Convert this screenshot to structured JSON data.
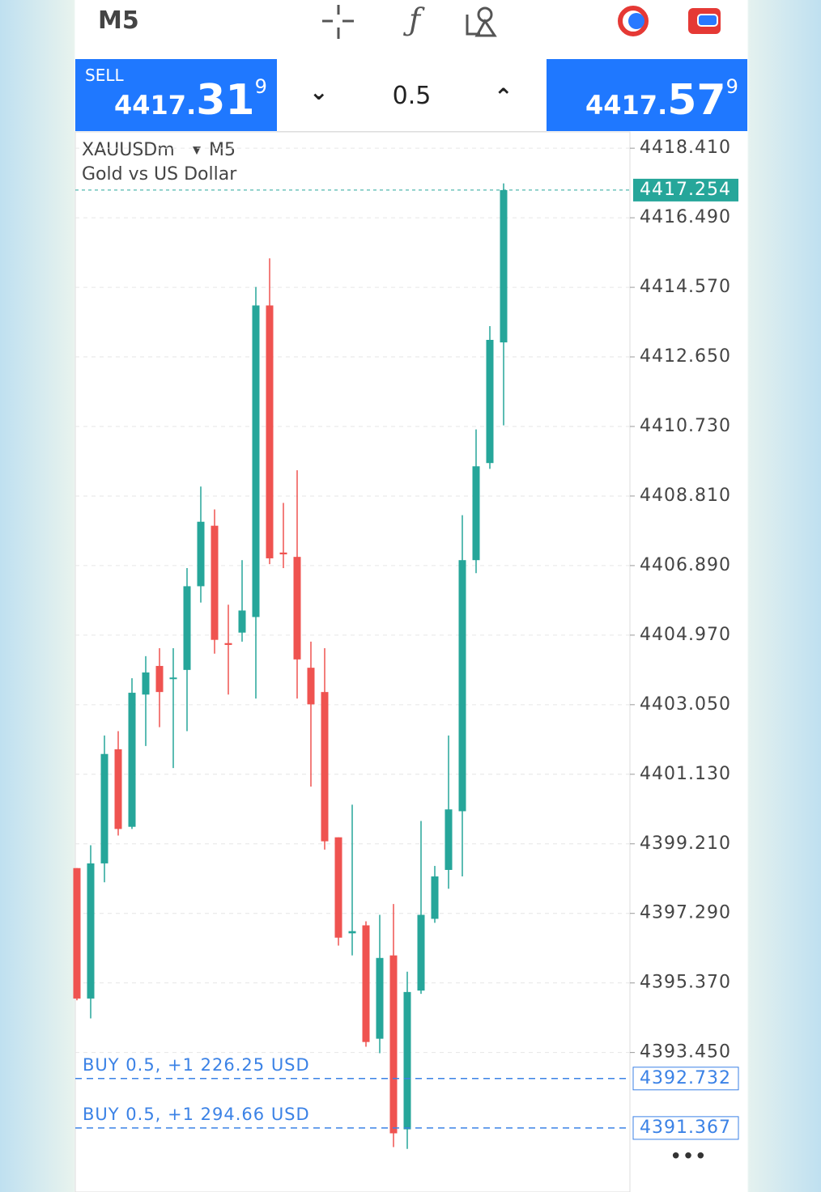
{
  "header": {
    "timeframe": "M5"
  },
  "trade_panel": {
    "sell": {
      "label": "SELL",
      "price_main": "4417.",
      "price_big": "31",
      "price_sup": "9"
    },
    "volume": "0.5",
    "buy": {
      "price_main": "4417.",
      "price_big": "57",
      "price_sup": "9"
    }
  },
  "chart_data": {
    "type": "candlestick",
    "symbol": "XAUUSDm",
    "timeframe": "M5",
    "description": "Gold vs US Dollar",
    "up_color": "#26a69a",
    "down_color": "#ef5350",
    "grid": true,
    "categories": [
      null,
      null,
      null,
      null,
      null,
      null,
      null,
      null,
      null,
      null,
      null,
      null,
      null,
      null,
      null,
      null,
      null,
      null,
      null,
      null,
      null,
      null,
      null,
      null,
      null,
      null,
      null,
      null,
      null,
      null,
      null,
      null
    ],
    "open": [
      4398.54,
      4394.94,
      4398.67,
      4401.82,
      4399.68,
      4403.33,
      4404.12,
      4403.76,
      4404.01,
      4406.32,
      4407.99,
      4404.75,
      4405.04,
      4405.47,
      4414.07,
      4407.25,
      4407.13,
      4404.07,
      4403.4,
      4399.39,
      4396.74,
      4396.96,
      4393.83,
      4396.13,
      4391.33,
      4395.16,
      4397.14,
      4398.49,
      4400.11,
      4407.04,
      4409.72,
      4413.05
    ],
    "high": [
      4398.54,
      4399.17,
      4402.2,
      4402.32,
      4403.78,
      4404.39,
      4404.61,
      4404.61,
      4406.82,
      4409.07,
      4408.44,
      4405.81,
      4407.04,
      4414.58,
      4415.37,
      4408.62,
      4409.52,
      4404.79,
      4404.61,
      4399.39,
      4400.29,
      4397.07,
      4397.25,
      4397.55,
      4395.68,
      4399.84,
      4398.6,
      4402.2,
      4408.28,
      4410.65,
      4413.5,
      4417.44
    ],
    "low": [
      4394.89,
      4394.39,
      4398.15,
      4399.44,
      4399.62,
      4401.91,
      4402.43,
      4401.3,
      4402.32,
      4405.87,
      4404.46,
      4403.33,
      4404.79,
      4403.22,
      4406.93,
      4406.82,
      4403.22,
      4400.79,
      4399.05,
      4396.4,
      4396.13,
      4393.61,
      4393.43,
      4390.84,
      4390.79,
      4395.07,
      4397.03,
      4397.97,
      4398.31,
      4406.68,
      4409.56,
      4410.76
    ],
    "close": [
      4394.94,
      4398.67,
      4401.69,
      4399.62,
      4403.38,
      4403.94,
      4403.4,
      4403.8,
      4406.32,
      4408.1,
      4404.84,
      4404.7,
      4405.65,
      4414.07,
      4407.09,
      4407.2,
      4404.3,
      4403.06,
      4399.28,
      4396.62,
      4396.8,
      4393.74,
      4396.06,
      4391.22,
      4395.12,
      4397.25,
      4398.31,
      4400.16,
      4407.04,
      4409.63,
      4413.12,
      4417.254
    ],
    "ylim": [
      4389.6,
      4418.86
    ],
    "yticks": [
      {
        "value": 4418.41,
        "label": "4418.410"
      },
      {
        "value": 4416.49,
        "label": "4416.490"
      },
      {
        "value": 4414.57,
        "label": "4414.570"
      },
      {
        "value": 4412.65,
        "label": "4412.650"
      },
      {
        "value": 4410.73,
        "label": "4410.730"
      },
      {
        "value": 4408.81,
        "label": "4408.810"
      },
      {
        "value": 4406.89,
        "label": "4406.890"
      },
      {
        "value": 4404.97,
        "label": "4404.970"
      },
      {
        "value": 4403.05,
        "label": "4403.050"
      },
      {
        "value": 4401.13,
        "label": "4401.130"
      },
      {
        "value": 4399.21,
        "label": "4399.210"
      },
      {
        "value": 4397.29,
        "label": "4397.290"
      },
      {
        "value": 4395.37,
        "label": "4395.370"
      },
      {
        "value": 4393.45,
        "label": "4393.450"
      }
    ],
    "current_price": {
      "value": 4417.254,
      "label": "4417.254",
      "color": "#26a69a"
    },
    "positions": [
      {
        "value": 4392.732,
        "label": "4392.732",
        "text": "BUY 0.5, +1 226.25 USD",
        "color": "#3b82e6"
      },
      {
        "value": 4391.367,
        "label": "4391.367",
        "text": "BUY 0.5, +1 294.66 USD",
        "color": "#3b82e6"
      }
    ]
  }
}
